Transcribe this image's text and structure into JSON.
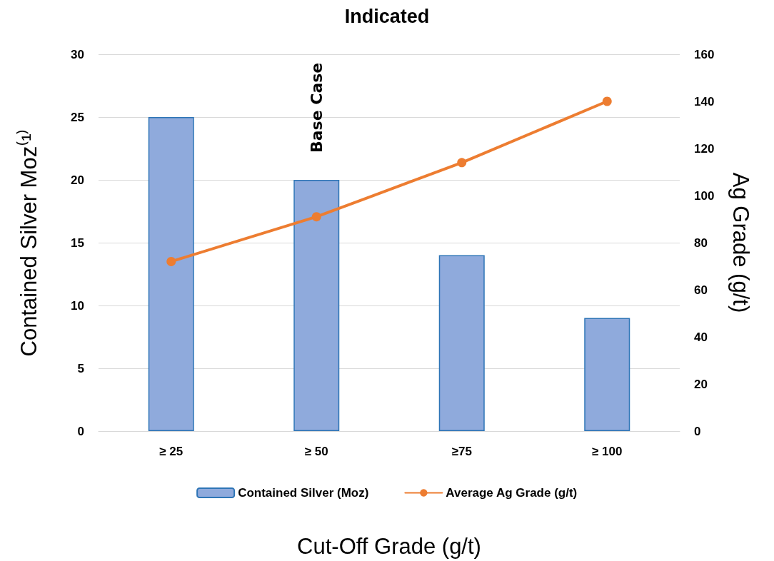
{
  "chart_data": {
    "type": "bar",
    "title": "Indicated",
    "xlabel": "Cut-Off Grade (g/t)",
    "ylabel": "Contained Silver Moz⁽¹⁾",
    "y2label": "Ag Grade (g/t)",
    "categories": [
      "≥ 25",
      "≥ 50",
      "≥75",
      "≥ 100"
    ],
    "series": [
      {
        "name": "Contained Silver (Moz)",
        "color": "#8faadc",
        "values": [
          25,
          20,
          14,
          9
        ]
      },
      {
        "name": "Average Ag Grade (g/t)",
        "type": "line",
        "axis": "y2",
        "color": "#ed7d31",
        "marker": "circle",
        "values": [
          72,
          91,
          114,
          140
        ]
      }
    ],
    "ylim": [
      0,
      30
    ],
    "yticks": [
      0,
      5,
      10,
      15,
      20,
      25,
      30
    ],
    "y2lim": [
      0,
      160
    ],
    "y2ticks": [
      0,
      20,
      40,
      60,
      80,
      100,
      120,
      140,
      160
    ],
    "grid": "y",
    "legend": "bottom",
    "annotations": [
      {
        "text": "Base Case",
        "x": "≥ 50",
        "y": 20
      }
    ]
  }
}
